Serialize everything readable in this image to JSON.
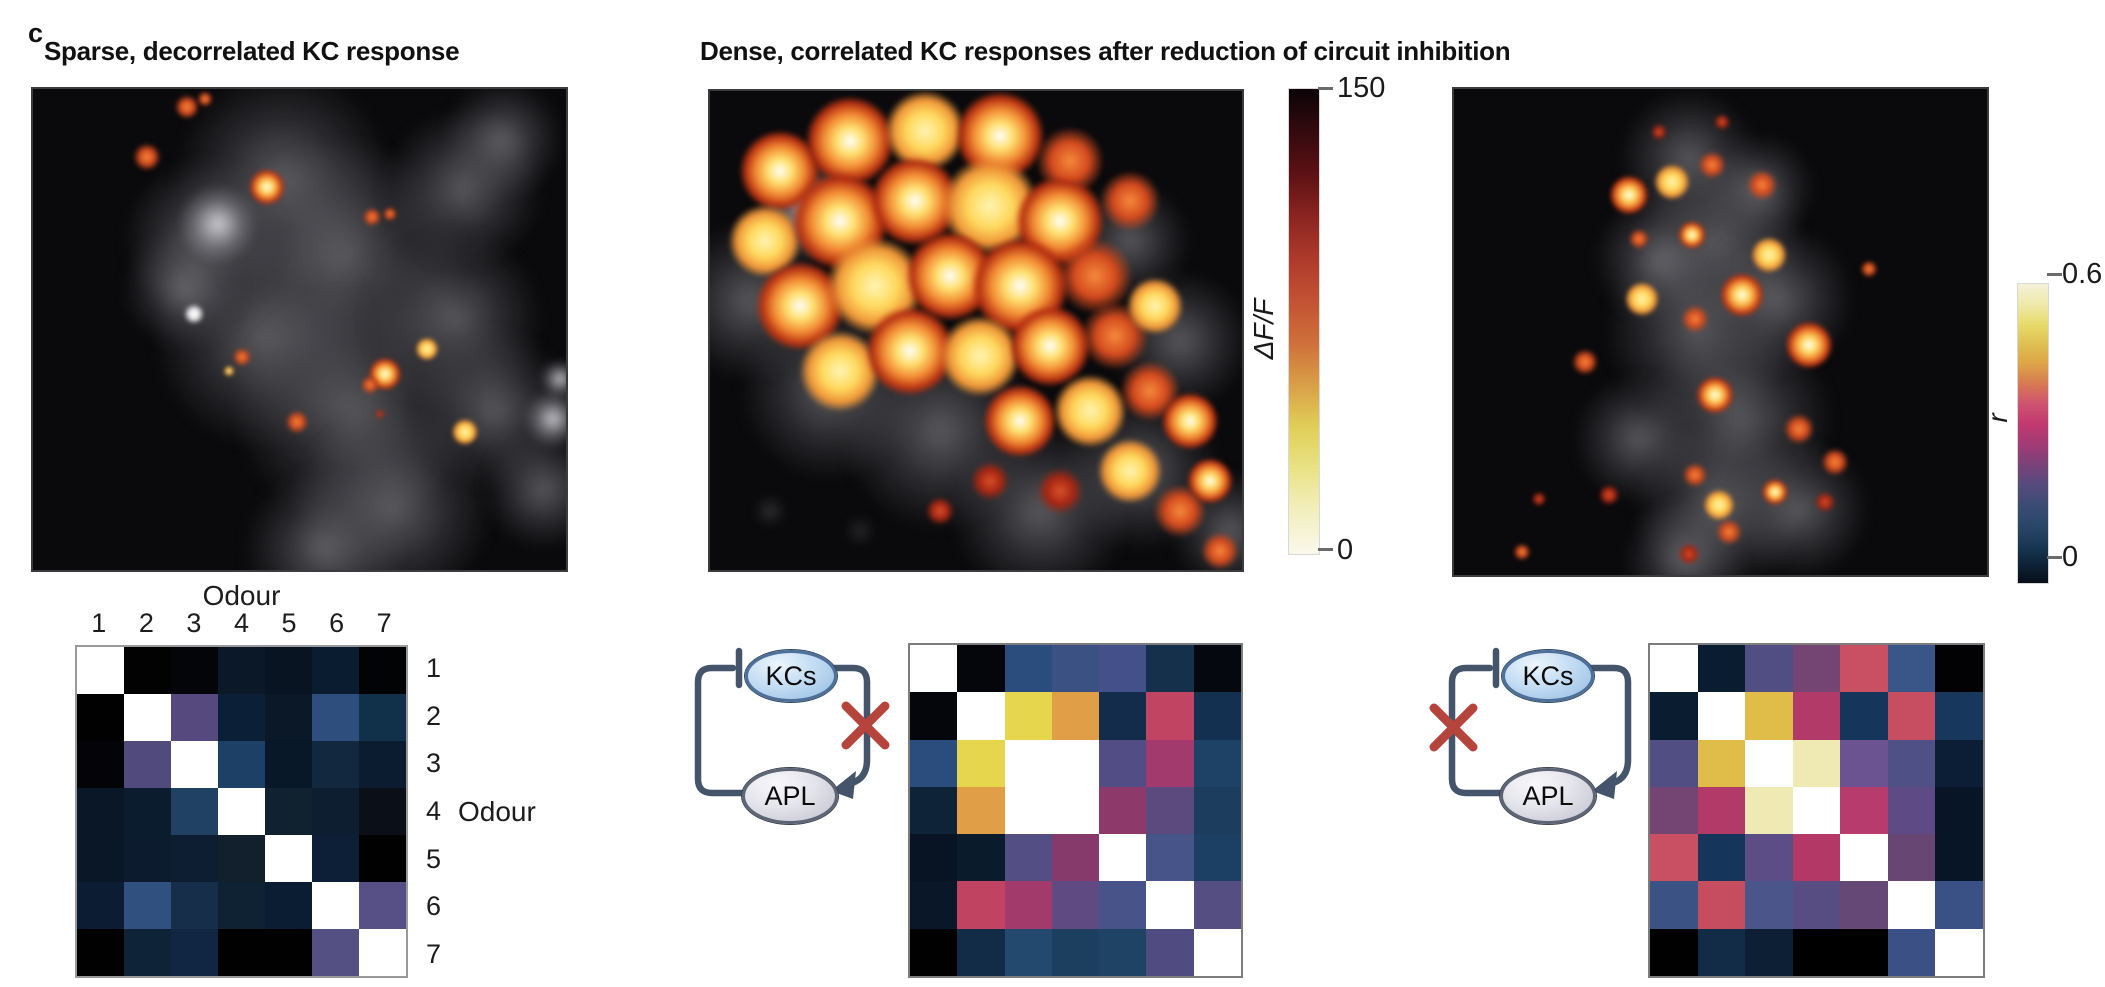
{
  "panel_label": "c",
  "titles": {
    "left": "Sparse, decorrelated KC response",
    "middle": "Dense, correlated KC responses after reduction of circuit inhibition"
  },
  "colorbars": {
    "dff": {
      "axis_label": "ΔF/F",
      "top_tick": "150",
      "bottom_tick": "0",
      "gradient_top_to_bottom": [
        "#0b0307",
        "#330a0e",
        "#5c1115",
        "#8a2420",
        "#ad3a2b",
        "#c25233",
        "#cf6f3a",
        "#d99f47",
        "#e0cf58",
        "#e9e386",
        "#f2efc0",
        "#faf8ec"
      ]
    },
    "r": {
      "axis_label": "r",
      "top_tick": "0.6",
      "bottom_tick": "0",
      "gradient_top_to_bottom": [
        "#f6f2d9",
        "#efe9ab",
        "#e7db6d",
        "#e0c052",
        "#dda448",
        "#d87a52",
        "#cf5370",
        "#c23a70",
        "#a43a75",
        "#7c4178",
        "#584a7c",
        "#3d4c74",
        "#2b486b",
        "#1b3a57",
        "#0e2439",
        "#070e18"
      ]
    }
  },
  "matrix_labels": {
    "top_axis": "Odour",
    "right_axis": "Odour",
    "col_labels": [
      "1",
      "2",
      "3",
      "4",
      "5",
      "6",
      "7"
    ],
    "row_labels": [
      "1",
      "2",
      "3",
      "4",
      "5",
      "6",
      "7"
    ]
  },
  "circuits": {
    "kcs_label": "KCs",
    "apl_label": "APL"
  },
  "chart_data": [
    {
      "type": "heatmap",
      "id": "left",
      "title": "Sparse, decorrelated KC response — odour × odour correlation",
      "xlabel": "Odour",
      "ylabel": "Odour",
      "col_labels": [
        "1",
        "2",
        "3",
        "4",
        "5",
        "6",
        "7"
      ],
      "row_labels": [
        "1",
        "2",
        "3",
        "4",
        "5",
        "6",
        "7"
      ],
      "colormap": "r, 0 (black/navy) to 0.6 (cream/white), diagonal = 1 (white)",
      "cell_colors": [
        [
          "#ffffff",
          "#020203",
          "#040508",
          "#0a1828",
          "#081422",
          "#0a1c30",
          "#020305"
        ],
        [
          "#010102",
          "#ffffff",
          "#55497e",
          "#0b2036",
          "#0a1827",
          "#2e4f7e",
          "#113049"
        ],
        [
          "#040408",
          "#514a7c",
          "#ffffff",
          "#1d4166",
          "#081829",
          "#11283f",
          "#0b1c31"
        ],
        [
          "#0a1726",
          "#0c1c2f",
          "#204163",
          "#ffffff",
          "#102130",
          "#0d1e31",
          "#0a0f18"
        ],
        [
          "#0a1727",
          "#0c1c2e",
          "#0d1e33",
          "#12202e",
          "#ffffff",
          "#0c1f36",
          "#010101"
        ],
        [
          "#0c1d33",
          "#30517f",
          "#162e4a",
          "#0e2233",
          "#0b1d33",
          "#ffffff",
          "#565086"
        ],
        [
          "#010102",
          "#0e2338",
          "#102642",
          "#010102",
          "#010102",
          "#555084",
          "#ffffff"
        ]
      ]
    },
    {
      "type": "heatmap",
      "id": "middle",
      "title": "Correlation matrix after KC→APL block",
      "colormap": "r, 0 (black/navy) to 0.6 (cream/white), diagonal = 1 (white)",
      "cell_colors": [
        [
          "#ffffff",
          "#04060c",
          "#2b4d7d",
          "#3b5183",
          "#44508a",
          "#14304a",
          "#05080f"
        ],
        [
          "#04060c",
          "#ffffff",
          "#e6d64d",
          "#e09e47",
          "#132c4c",
          "#c24463",
          "#143050"
        ],
        [
          "#2b4d7d",
          "#e6d64d",
          "#ffffff",
          "#ffffff",
          "#524e85",
          "#a23a6d",
          "#1e4265"
        ],
        [
          "#0f2338",
          "#e09e47",
          "#ffffff",
          "#ffffff",
          "#8d3a6a",
          "#5c4a7e",
          "#1c3d5e"
        ],
        [
          "#081423",
          "#0a1b2c",
          "#534e84",
          "#853a6b",
          "#ffffff",
          "#475489",
          "#1c4063"
        ],
        [
          "#0a1729",
          "#c04462",
          "#a23a6b",
          "#5f4b82",
          "#485389",
          "#ffffff",
          "#544e83"
        ],
        [
          "#010102",
          "#122c47",
          "#234a6e",
          "#1c3f60",
          "#1f4365",
          "#504b80",
          "#ffffff"
        ]
      ]
    },
    {
      "type": "heatmap",
      "id": "right",
      "title": "Correlation matrix after APL→KC block",
      "colormap": "r, 0 (black/navy) to 0.6 (cream/white), diagonal = 1 (white)",
      "cell_colors": [
        [
          "#ffffff",
          "#0a1c30",
          "#514e84",
          "#744572",
          "#c94f63",
          "#3a5588",
          "#020204"
        ],
        [
          "#0a1c30",
          "#ffffff",
          "#e0bc48",
          "#b23a69",
          "#16355a",
          "#c74e61",
          "#17385c"
        ],
        [
          "#514e84",
          "#e0bc48",
          "#ffffff",
          "#efeab4",
          "#6a5390",
          "#4f5086",
          "#0c1e35"
        ],
        [
          "#744572",
          "#b23a69",
          "#efeab4",
          "#ffffff",
          "#b73b6c",
          "#5e4a85",
          "#081527"
        ],
        [
          "#c94f63",
          "#16355a",
          "#5d4d86",
          "#b33866",
          "#ffffff",
          "#684673",
          "#081527"
        ],
        [
          "#3b5284",
          "#c64d60",
          "#4c5589",
          "#584d83",
          "#654876",
          "#ffffff",
          "#3a5185"
        ],
        [
          "#010101",
          "#122c47",
          "#0c1f35",
          "#000000",
          "#000000",
          "#3b5185",
          "#ffffff"
        ]
      ]
    }
  ],
  "brain_images": {
    "left": {
      "blobs": [
        [
          250,
          90,
          110,
          "gray"
        ],
        [
          310,
          170,
          120,
          "gray"
        ],
        [
          230,
          250,
          110,
          "gray"
        ],
        [
          320,
          320,
          120,
          "gray"
        ],
        [
          360,
          420,
          100,
          "gray"
        ],
        [
          170,
          150,
          80,
          "gray"
        ],
        [
          430,
          100,
          80,
          "gray"
        ],
        [
          470,
          50,
          60,
          "gray"
        ],
        [
          290,
          460,
          80,
          "gray"
        ],
        [
          150,
          200,
          60,
          "gray"
        ],
        [
          420,
          230,
          90,
          "gray"
        ],
        [
          460,
          320,
          80,
          "gray"
        ],
        [
          510,
          400,
          60,
          "gray"
        ],
        [
          185,
          135,
          40,
          "graybright"
        ],
        [
          520,
          330,
          30,
          "graybright"
        ],
        [
          527,
          290,
          20,
          "graybright"
        ],
        [
          161,
          225,
          13,
          "white"
        ],
        [
          154,
          18,
          16,
          "orange"
        ],
        [
          172,
          10,
          10,
          "orange"
        ],
        [
          114,
          68,
          18,
          "orange"
        ],
        [
          234,
          98,
          22,
          "fire"
        ],
        [
          339,
          128,
          12,
          "orange"
        ],
        [
          357,
          125,
          9,
          "orange"
        ],
        [
          209,
          268,
          12,
          "orange"
        ],
        [
          196,
          282,
          6,
          "yellow"
        ],
        [
          394,
          260,
          14,
          "yellow"
        ],
        [
          352,
          285,
          20,
          "fire"
        ],
        [
          264,
          333,
          15,
          "orange"
        ],
        [
          337,
          296,
          12,
          "orange"
        ],
        [
          432,
          343,
          16,
          "yellow"
        ],
        [
          347,
          325,
          6,
          "red"
        ]
      ]
    },
    "middle": {
      "blobs": [
        [
          40,
          210,
          80,
          "gray"
        ],
        [
          120,
          300,
          90,
          "gray"
        ],
        [
          230,
          340,
          100,
          "gray"
        ],
        [
          330,
          420,
          90,
          "gray"
        ],
        [
          430,
          380,
          80,
          "gray"
        ],
        [
          470,
          250,
          70,
          "gray"
        ],
        [
          420,
          150,
          60,
          "gray"
        ],
        [
          520,
          440,
          60,
          "gray"
        ],
        [
          100,
          120,
          50,
          "graybright"
        ],
        [
          60,
          420,
          12,
          "gray"
        ],
        [
          150,
          440,
          10,
          "gray"
        ],
        [
          70,
          80,
          50,
          "fire"
        ],
        [
          140,
          50,
          55,
          "fire"
        ],
        [
          215,
          40,
          50,
          "yellow"
        ],
        [
          290,
          45,
          55,
          "fire"
        ],
        [
          360,
          70,
          45,
          "orange"
        ],
        [
          55,
          150,
          45,
          "yellow"
        ],
        [
          130,
          130,
          60,
          "fire"
        ],
        [
          205,
          110,
          55,
          "fire"
        ],
        [
          280,
          115,
          60,
          "yellow"
        ],
        [
          350,
          130,
          55,
          "fire"
        ],
        [
          420,
          110,
          40,
          "orange"
        ],
        [
          90,
          215,
          55,
          "fire"
        ],
        [
          165,
          195,
          60,
          "yellow"
        ],
        [
          240,
          185,
          55,
          "fire"
        ],
        [
          310,
          195,
          60,
          "fire"
        ],
        [
          385,
          185,
          50,
          "orange"
        ],
        [
          130,
          280,
          50,
          "yellow"
        ],
        [
          200,
          260,
          55,
          "fire"
        ],
        [
          270,
          265,
          50,
          "yellow"
        ],
        [
          340,
          255,
          50,
          "fire"
        ],
        [
          405,
          245,
          45,
          "orange"
        ],
        [
          445,
          215,
          35,
          "yellow"
        ],
        [
          310,
          330,
          45,
          "fire"
        ],
        [
          380,
          320,
          45,
          "yellow"
        ],
        [
          440,
          300,
          40,
          "orange"
        ],
        [
          480,
          330,
          35,
          "fire"
        ],
        [
          420,
          380,
          40,
          "yellow"
        ],
        [
          470,
          420,
          35,
          "orange"
        ],
        [
          350,
          400,
          30,
          "red"
        ],
        [
          500,
          390,
          28,
          "fire"
        ],
        [
          510,
          460,
          25,
          "orange"
        ],
        [
          280,
          390,
          25,
          "red"
        ],
        [
          230,
          420,
          18,
          "red"
        ]
      ]
    },
    "right": {
      "blobs": [
        [
          235,
          70,
          70,
          "gray"
        ],
        [
          265,
          150,
          85,
          "gray"
        ],
        [
          245,
          240,
          95,
          "gray"
        ],
        [
          285,
          330,
          95,
          "gray"
        ],
        [
          265,
          420,
          85,
          "gray"
        ],
        [
          205,
          170,
          65,
          "gray"
        ],
        [
          325,
          210,
          75,
          "gray"
        ],
        [
          345,
          420,
          70,
          "gray"
        ],
        [
          185,
          350,
          65,
          "gray"
        ],
        [
          305,
          100,
          55,
          "gray"
        ],
        [
          230,
          470,
          60,
          "gray"
        ],
        [
          175,
          106,
          24,
          "fire"
        ],
        [
          218,
          93,
          22,
          "yellow"
        ],
        [
          258,
          76,
          18,
          "orange"
        ],
        [
          308,
          96,
          20,
          "orange"
        ],
        [
          205,
          43,
          10,
          "red"
        ],
        [
          268,
          33,
          10,
          "red"
        ],
        [
          185,
          150,
          13,
          "orange"
        ],
        [
          238,
          146,
          17,
          "fire"
        ],
        [
          315,
          166,
          22,
          "yellow"
        ],
        [
          188,
          210,
          21,
          "yellow"
        ],
        [
          241,
          230,
          18,
          "orange"
        ],
        [
          288,
          206,
          27,
          "fire"
        ],
        [
          355,
          256,
          29,
          "fire"
        ],
        [
          131,
          273,
          17,
          "orange"
        ],
        [
          261,
          306,
          23,
          "fire"
        ],
        [
          345,
          340,
          20,
          "orange"
        ],
        [
          381,
          373,
          18,
          "orange"
        ],
        [
          241,
          386,
          16,
          "orange"
        ],
        [
          265,
          416,
          19,
          "yellow"
        ],
        [
          321,
          403,
          16,
          "fire"
        ],
        [
          415,
          180,
          11,
          "orange"
        ],
        [
          155,
          406,
          13,
          "red"
        ],
        [
          85,
          410,
          9,
          "red"
        ],
        [
          68,
          463,
          11,
          "orange"
        ],
        [
          275,
          443,
          17,
          "orange"
        ],
        [
          371,
          413,
          13,
          "red"
        ],
        [
          235,
          465,
          14,
          "red"
        ]
      ]
    }
  }
}
